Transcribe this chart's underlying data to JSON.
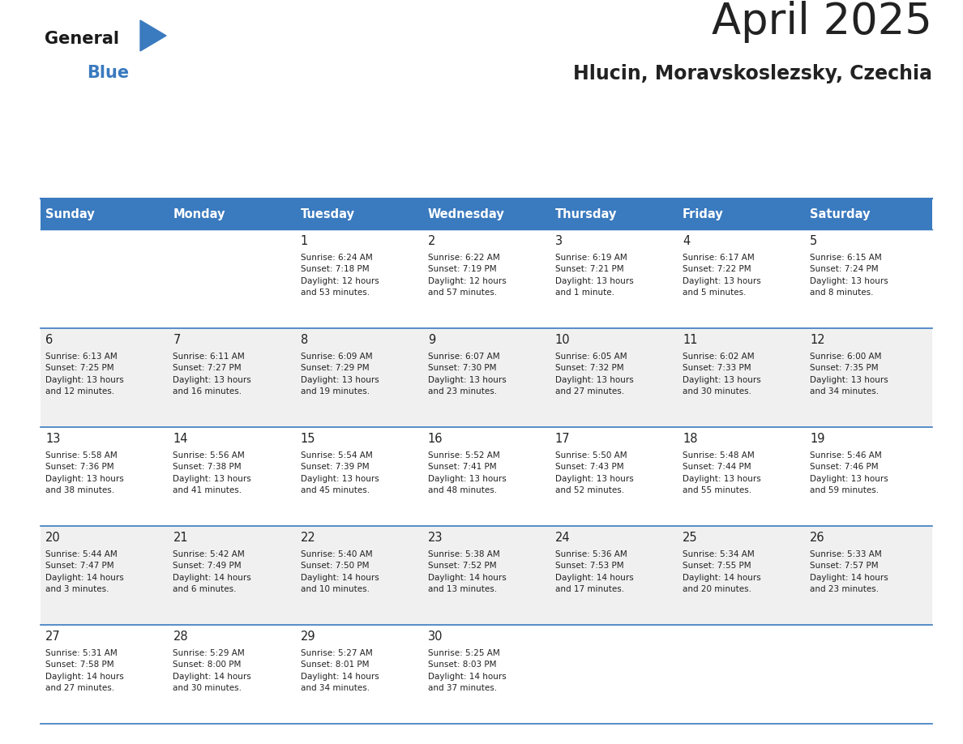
{
  "title": "April 2025",
  "subtitle": "Hlucin, Moravskoslezsky, Czechia",
  "days_of_week": [
    "Sunday",
    "Monday",
    "Tuesday",
    "Wednesday",
    "Thursday",
    "Friday",
    "Saturday"
  ],
  "header_bg": "#3a7abf",
  "header_text": "#ffffff",
  "row_bg_odd": "#ffffff",
  "row_bg_even": "#f0f0f0",
  "cell_text_color": "#222222",
  "border_color": "#3a7abf",
  "title_color": "#222222",
  "subtitle_color": "#222222",
  "calendar": [
    [
      {
        "day": "",
        "info": ""
      },
      {
        "day": "",
        "info": ""
      },
      {
        "day": "1",
        "info": "Sunrise: 6:24 AM\nSunset: 7:18 PM\nDaylight: 12 hours\nand 53 minutes."
      },
      {
        "day": "2",
        "info": "Sunrise: 6:22 AM\nSunset: 7:19 PM\nDaylight: 12 hours\nand 57 minutes."
      },
      {
        "day": "3",
        "info": "Sunrise: 6:19 AM\nSunset: 7:21 PM\nDaylight: 13 hours\nand 1 minute."
      },
      {
        "day": "4",
        "info": "Sunrise: 6:17 AM\nSunset: 7:22 PM\nDaylight: 13 hours\nand 5 minutes."
      },
      {
        "day": "5",
        "info": "Sunrise: 6:15 AM\nSunset: 7:24 PM\nDaylight: 13 hours\nand 8 minutes."
      }
    ],
    [
      {
        "day": "6",
        "info": "Sunrise: 6:13 AM\nSunset: 7:25 PM\nDaylight: 13 hours\nand 12 minutes."
      },
      {
        "day": "7",
        "info": "Sunrise: 6:11 AM\nSunset: 7:27 PM\nDaylight: 13 hours\nand 16 minutes."
      },
      {
        "day": "8",
        "info": "Sunrise: 6:09 AM\nSunset: 7:29 PM\nDaylight: 13 hours\nand 19 minutes."
      },
      {
        "day": "9",
        "info": "Sunrise: 6:07 AM\nSunset: 7:30 PM\nDaylight: 13 hours\nand 23 minutes."
      },
      {
        "day": "10",
        "info": "Sunrise: 6:05 AM\nSunset: 7:32 PM\nDaylight: 13 hours\nand 27 minutes."
      },
      {
        "day": "11",
        "info": "Sunrise: 6:02 AM\nSunset: 7:33 PM\nDaylight: 13 hours\nand 30 minutes."
      },
      {
        "day": "12",
        "info": "Sunrise: 6:00 AM\nSunset: 7:35 PM\nDaylight: 13 hours\nand 34 minutes."
      }
    ],
    [
      {
        "day": "13",
        "info": "Sunrise: 5:58 AM\nSunset: 7:36 PM\nDaylight: 13 hours\nand 38 minutes."
      },
      {
        "day": "14",
        "info": "Sunrise: 5:56 AM\nSunset: 7:38 PM\nDaylight: 13 hours\nand 41 minutes."
      },
      {
        "day": "15",
        "info": "Sunrise: 5:54 AM\nSunset: 7:39 PM\nDaylight: 13 hours\nand 45 minutes."
      },
      {
        "day": "16",
        "info": "Sunrise: 5:52 AM\nSunset: 7:41 PM\nDaylight: 13 hours\nand 48 minutes."
      },
      {
        "day": "17",
        "info": "Sunrise: 5:50 AM\nSunset: 7:43 PM\nDaylight: 13 hours\nand 52 minutes."
      },
      {
        "day": "18",
        "info": "Sunrise: 5:48 AM\nSunset: 7:44 PM\nDaylight: 13 hours\nand 55 minutes."
      },
      {
        "day": "19",
        "info": "Sunrise: 5:46 AM\nSunset: 7:46 PM\nDaylight: 13 hours\nand 59 minutes."
      }
    ],
    [
      {
        "day": "20",
        "info": "Sunrise: 5:44 AM\nSunset: 7:47 PM\nDaylight: 14 hours\nand 3 minutes."
      },
      {
        "day": "21",
        "info": "Sunrise: 5:42 AM\nSunset: 7:49 PM\nDaylight: 14 hours\nand 6 minutes."
      },
      {
        "day": "22",
        "info": "Sunrise: 5:40 AM\nSunset: 7:50 PM\nDaylight: 14 hours\nand 10 minutes."
      },
      {
        "day": "23",
        "info": "Sunrise: 5:38 AM\nSunset: 7:52 PM\nDaylight: 14 hours\nand 13 minutes."
      },
      {
        "day": "24",
        "info": "Sunrise: 5:36 AM\nSunset: 7:53 PM\nDaylight: 14 hours\nand 17 minutes."
      },
      {
        "day": "25",
        "info": "Sunrise: 5:34 AM\nSunset: 7:55 PM\nDaylight: 14 hours\nand 20 minutes."
      },
      {
        "day": "26",
        "info": "Sunrise: 5:33 AM\nSunset: 7:57 PM\nDaylight: 14 hours\nand 23 minutes."
      }
    ],
    [
      {
        "day": "27",
        "info": "Sunrise: 5:31 AM\nSunset: 7:58 PM\nDaylight: 14 hours\nand 27 minutes."
      },
      {
        "day": "28",
        "info": "Sunrise: 5:29 AM\nSunset: 8:00 PM\nDaylight: 14 hours\nand 30 minutes."
      },
      {
        "day": "29",
        "info": "Sunrise: 5:27 AM\nSunset: 8:01 PM\nDaylight: 14 hours\nand 34 minutes."
      },
      {
        "day": "30",
        "info": "Sunrise: 5:25 AM\nSunset: 8:03 PM\nDaylight: 14 hours\nand 37 minutes."
      },
      {
        "day": "",
        "info": ""
      },
      {
        "day": "",
        "info": ""
      },
      {
        "day": "",
        "info": ""
      }
    ]
  ],
  "logo_text1": "General",
  "logo_text2": "Blue",
  "logo_triangle_color": "#3a7abf",
  "logo_text1_color": "#1a1a1a"
}
